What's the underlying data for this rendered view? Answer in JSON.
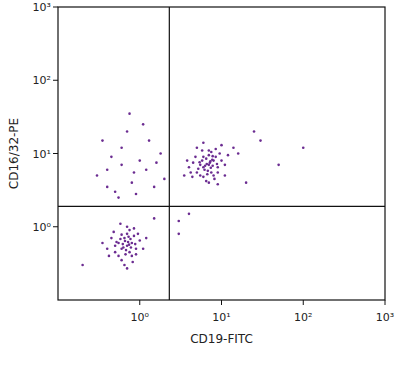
{
  "chart_data": {
    "type": "scatter",
    "x_label": "CD19-FITC",
    "y_label": "CD16/32-PE",
    "log": true,
    "color": "#6b2c91",
    "marker": "circle",
    "xlim": [
      0.1,
      1000
    ],
    "ylim": [
      0.1,
      1000
    ],
    "xticks": [
      {
        "value": 1,
        "label": "10⁰"
      },
      {
        "value": 10,
        "label": "10¹"
      },
      {
        "value": 100,
        "label": "10²"
      },
      {
        "value": 1000,
        "label": "10³"
      }
    ],
    "yticks": [
      {
        "value": 1,
        "label": "10⁰"
      },
      {
        "value": 10,
        "label": "10¹"
      },
      {
        "value": 100,
        "label": "10²"
      },
      {
        "value": 1000,
        "label": "10³"
      }
    ],
    "quadrant": {
      "x": 2.3,
      "y": 1.9
    },
    "x": [
      0.7,
      0.6,
      0.8,
      0.65,
      0.75,
      0.55,
      0.9,
      0.7,
      0.5,
      0.85,
      0.6,
      0.8,
      0.45,
      1.0,
      0.72,
      0.62,
      0.78,
      0.68,
      0.58,
      0.88,
      0.5,
      0.95,
      0.4,
      0.7,
      0.65,
      1.1,
      0.75,
      0.55,
      0.82,
      0.48,
      0.66,
      0.74,
      0.6,
      0.9,
      0.35,
      0.77,
      0.63,
      0.52,
      1.2,
      0.7,
      0.58,
      0.85,
      0.42,
      0.73,
      0.67,
      7,
      6,
      8,
      6.5,
      7.5,
      5.5,
      9,
      7,
      5,
      8.5,
      6,
      8,
      4.5,
      10,
      7.2,
      6.2,
      7.8,
      6.8,
      5.8,
      8.8,
      5.2,
      9.5,
      4.2,
      7,
      6.5,
      11,
      7.5,
      5.5,
      8.2,
      4.8,
      6.6,
      7.4,
      6,
      9,
      4,
      7.7,
      6.3,
      5.4,
      12,
      7,
      5.8,
      8.5,
      4.4,
      7.3,
      6.7,
      14,
      3.8,
      10,
      9,
      5,
      16,
      3.5,
      6,
      11,
      7.8,
      0.5,
      0.8,
      0.4,
      1.0,
      0.6,
      0.3,
      1.5,
      0.7,
      0.9,
      1.2,
      0.45,
      1.8,
      0.55,
      0.35,
      1.3,
      0.75,
      2,
      0.6,
      1.1,
      0.4,
      1.6,
      0.85,
      30,
      100,
      50,
      20,
      3,
      4,
      0.2,
      1.5,
      25,
      3
    ],
    "values": [
      0.55,
      0.5,
      0.6,
      0.7,
      0.45,
      0.6,
      0.5,
      0.8,
      0.45,
      0.75,
      0.35,
      0.4,
      0.7,
      0.65,
      0.62,
      0.58,
      0.52,
      0.48,
      0.68,
      0.58,
      0.55,
      0.8,
      0.5,
      1.0,
      0.3,
      0.5,
      0.9,
      0.4,
      0.33,
      0.85,
      0.64,
      0.57,
      0.78,
      0.42,
      0.6,
      0.68,
      0.52,
      0.62,
      0.7,
      0.27,
      1.1,
      0.95,
      0.4,
      0.73,
      0.42,
      7,
      6.5,
      8,
      8.5,
      5.5,
      7,
      6.5,
      9.5,
      5.5,
      9,
      4.8,
      5,
      7.5,
      8,
      7.5,
      6,
      6.8,
      5.8,
      8,
      7.2,
      6.2,
      10,
      5.5,
      11,
      4.2,
      7,
      10.5,
      5,
      4.5,
      9,
      7.2,
      6.4,
      9,
      5.5,
      6.5,
      8.2,
      6.8,
      7.6,
      9.5,
      4,
      11,
      11.5,
      4.8,
      7.8,
      5.2,
      12,
      8,
      13,
      3.8,
      12,
      10,
      5,
      14,
      5,
      9.2,
      3,
      4,
      6,
      8,
      12,
      5,
      3.5,
      20,
      2.8,
      6,
      9,
      10,
      2.5,
      15,
      15,
      35,
      4.5,
      7,
      25,
      3.5,
      7.5,
      5.5,
      15,
      12,
      7,
      4,
      0.8,
      1.5,
      0.3,
      1.3,
      20,
      1.2
    ]
  }
}
